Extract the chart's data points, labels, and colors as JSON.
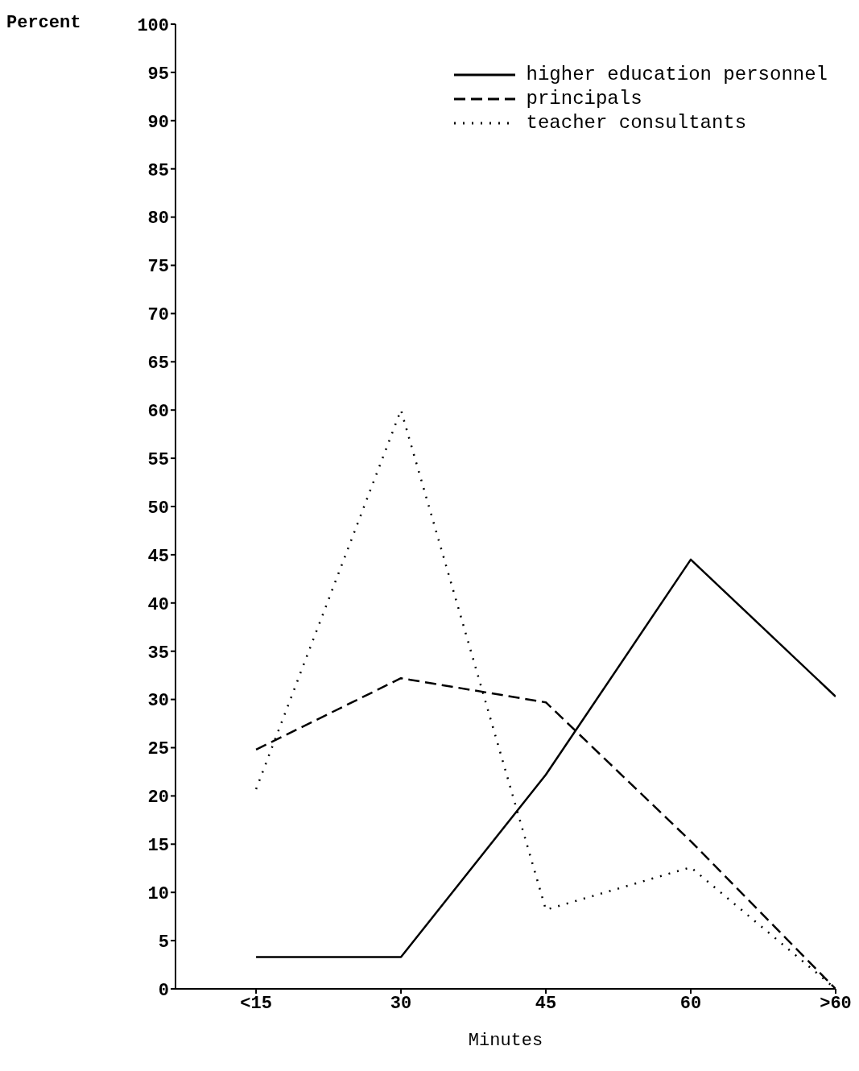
{
  "chart_data": {
    "type": "line",
    "ylabel": "Percent",
    "xlabel": "Minutes",
    "categories": [
      "<15",
      "30",
      "45",
      "60",
      ">60"
    ],
    "series": [
      {
        "name": "higher education personnel",
        "color": "#000000",
        "line_style": "solid",
        "values": [
          3.3,
          3.3,
          22.2,
          44.5,
          30.3
        ]
      },
      {
        "name": "principals",
        "color": "#000000",
        "line_style": "dashed",
        "values": [
          24.8,
          32.2,
          29.7,
          15.3,
          0
        ]
      },
      {
        "name": "teacher consultants",
        "color": "#000000",
        "line_style": "dotted",
        "values": [
          20.7,
          60,
          8.2,
          12.6,
          0
        ]
      }
    ],
    "ylim": [
      0,
      100
    ],
    "yticks": [
      0,
      5,
      10,
      15,
      20,
      25,
      30,
      35,
      40,
      45,
      50,
      55,
      60,
      65,
      70,
      75,
      80,
      85,
      90,
      95,
      100
    ],
    "grid": false,
    "legend": "top right",
    "marker": "none"
  }
}
